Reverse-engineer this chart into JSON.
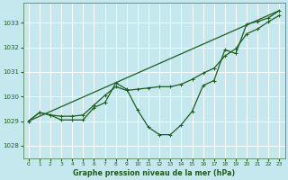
{
  "title": "Graphe pression niveau de la mer (hPa)",
  "background_color": "#c5e8ef",
  "grid_color": "#aed4db",
  "line_color": "#1e5c1e",
  "xlim": [
    -0.5,
    23.5
  ],
  "ylim": [
    1027.5,
    1033.8
  ],
  "yticks": [
    1028,
    1029,
    1030,
    1031,
    1032,
    1033
  ],
  "xticks": [
    0,
    1,
    2,
    3,
    4,
    5,
    6,
    7,
    8,
    9,
    10,
    11,
    12,
    13,
    14,
    15,
    16,
    17,
    18,
    19,
    20,
    21,
    22,
    23
  ],
  "series_wiggly": {
    "x": [
      0,
      1,
      2,
      3,
      4,
      5,
      6,
      7,
      8,
      9,
      10,
      11,
      12,
      13,
      14,
      15,
      16,
      17,
      18,
      19,
      20,
      21,
      22,
      23
    ],
    "y": [
      1029.0,
      1029.35,
      1029.25,
      1029.05,
      1029.05,
      1029.05,
      1029.55,
      1029.75,
      1030.55,
      1030.3,
      1029.45,
      1028.75,
      1028.45,
      1028.45,
      1028.85,
      1029.4,
      1030.45,
      1030.65,
      1031.9,
      1031.75,
      1032.95,
      1033.05,
      1033.2,
      1033.5
    ]
  },
  "series_smooth": {
    "x": [
      0,
      1,
      2,
      3,
      4,
      5,
      6,
      7,
      8,
      9,
      10,
      11,
      12,
      13,
      14,
      15,
      16,
      17,
      18,
      19,
      20,
      21,
      22,
      23
    ],
    "y": [
      1029.0,
      1029.35,
      1029.25,
      1029.2,
      1029.2,
      1029.25,
      1029.65,
      1030.05,
      1030.4,
      1030.25,
      1030.3,
      1030.35,
      1030.4,
      1030.4,
      1030.5,
      1030.7,
      1030.95,
      1031.15,
      1031.65,
      1031.95,
      1032.55,
      1032.75,
      1033.05,
      1033.3
    ]
  },
  "series_straight": {
    "x": [
      0,
      23
    ],
    "y": [
      1029.0,
      1033.5
    ]
  },
  "marker": "+",
  "markersize": 3.5,
  "linewidth": 0.9
}
